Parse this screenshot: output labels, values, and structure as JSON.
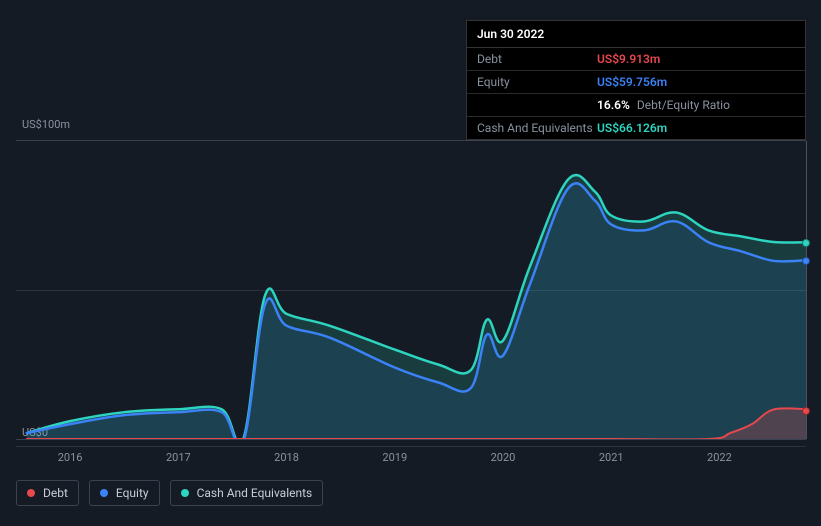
{
  "tooltip": {
    "date": "Jun 30 2022",
    "rows": {
      "debt": {
        "label": "Debt",
        "value": "US$9.913m"
      },
      "equity": {
        "label": "Equity",
        "value": "US$59.756m"
      },
      "ratio": {
        "label": "",
        "value": "16.6%",
        "suffix": "Debt/Equity Ratio"
      },
      "cash": {
        "label": "Cash And Equivalents",
        "value": "US$66.126m"
      }
    }
  },
  "chart": {
    "type": "area",
    "background": "#151b24",
    "grid_color": "#2a3140",
    "axis_color": "#3a4252",
    "label_color": "#8a92a0",
    "label_fontsize": 11,
    "y": {
      "min": 0,
      "max": 100,
      "ticks": [
        0,
        100
      ],
      "tick_labels": [
        "US$0",
        "US$100m"
      ],
      "mid_grid_at": 50
    },
    "x": {
      "min": 2015.5,
      "max": 2022.8,
      "ticks": [
        2016,
        2017,
        2018,
        2019,
        2020,
        2021,
        2022
      ],
      "tick_labels": [
        "2016",
        "2017",
        "2018",
        "2019",
        "2020",
        "2021",
        "2022"
      ]
    },
    "series": {
      "cash": {
        "label": "Cash And Equivalents",
        "color": "#2dd4bf",
        "fill": "rgba(45,212,191,0.18)",
        "line_width": 2.5,
        "points": [
          [
            2015.6,
            2
          ],
          [
            2016.0,
            6
          ],
          [
            2016.5,
            9
          ],
          [
            2017.0,
            10
          ],
          [
            2017.4,
            10
          ],
          [
            2017.6,
            0
          ],
          [
            2017.8,
            48
          ],
          [
            2018.0,
            42
          ],
          [
            2018.4,
            38
          ],
          [
            2019.0,
            30
          ],
          [
            2019.4,
            25
          ],
          [
            2019.7,
            23
          ],
          [
            2019.85,
            40
          ],
          [
            2020.0,
            33
          ],
          [
            2020.25,
            58
          ],
          [
            2020.6,
            87
          ],
          [
            2020.85,
            83
          ],
          [
            2021.0,
            75
          ],
          [
            2021.3,
            73
          ],
          [
            2021.6,
            76
          ],
          [
            2021.9,
            70
          ],
          [
            2022.2,
            68
          ],
          [
            2022.5,
            66.1
          ],
          [
            2022.8,
            66
          ]
        ]
      },
      "equity": {
        "label": "Equity",
        "color": "#3b82f6",
        "fill": "rgba(59,130,246,0.10)",
        "line_width": 2.5,
        "points": [
          [
            2015.6,
            2
          ],
          [
            2016.0,
            5
          ],
          [
            2016.5,
            8
          ],
          [
            2017.0,
            9
          ],
          [
            2017.4,
            9
          ],
          [
            2017.6,
            -1
          ],
          [
            2017.8,
            45
          ],
          [
            2018.0,
            38
          ],
          [
            2018.4,
            34
          ],
          [
            2019.0,
            24
          ],
          [
            2019.4,
            19
          ],
          [
            2019.7,
            17
          ],
          [
            2019.85,
            35
          ],
          [
            2020.0,
            28
          ],
          [
            2020.25,
            52
          ],
          [
            2020.6,
            84
          ],
          [
            2020.85,
            80
          ],
          [
            2021.0,
            72
          ],
          [
            2021.3,
            70
          ],
          [
            2021.6,
            73
          ],
          [
            2021.9,
            66
          ],
          [
            2022.2,
            63
          ],
          [
            2022.5,
            59.8
          ],
          [
            2022.8,
            60
          ]
        ]
      },
      "debt": {
        "label": "Debt",
        "color": "#e5484d",
        "fill": "rgba(229,72,77,0.25)",
        "line_width": 2,
        "points": [
          [
            2015.6,
            0
          ],
          [
            2017.0,
            0
          ],
          [
            2018.0,
            0
          ],
          [
            2019.0,
            0
          ],
          [
            2020.0,
            0
          ],
          [
            2021.0,
            0
          ],
          [
            2021.9,
            0
          ],
          [
            2022.1,
            2
          ],
          [
            2022.3,
            5
          ],
          [
            2022.5,
            9.9
          ],
          [
            2022.8,
            10
          ]
        ]
      }
    },
    "hover_x": 2022.8,
    "markers": [
      {
        "series": "cash",
        "x": 2022.8,
        "y": 66
      },
      {
        "series": "equity",
        "x": 2022.8,
        "y": 60
      },
      {
        "series": "debt",
        "x": 2022.8,
        "y": 10
      }
    ],
    "legend_order": [
      "debt",
      "equity",
      "cash"
    ]
  }
}
